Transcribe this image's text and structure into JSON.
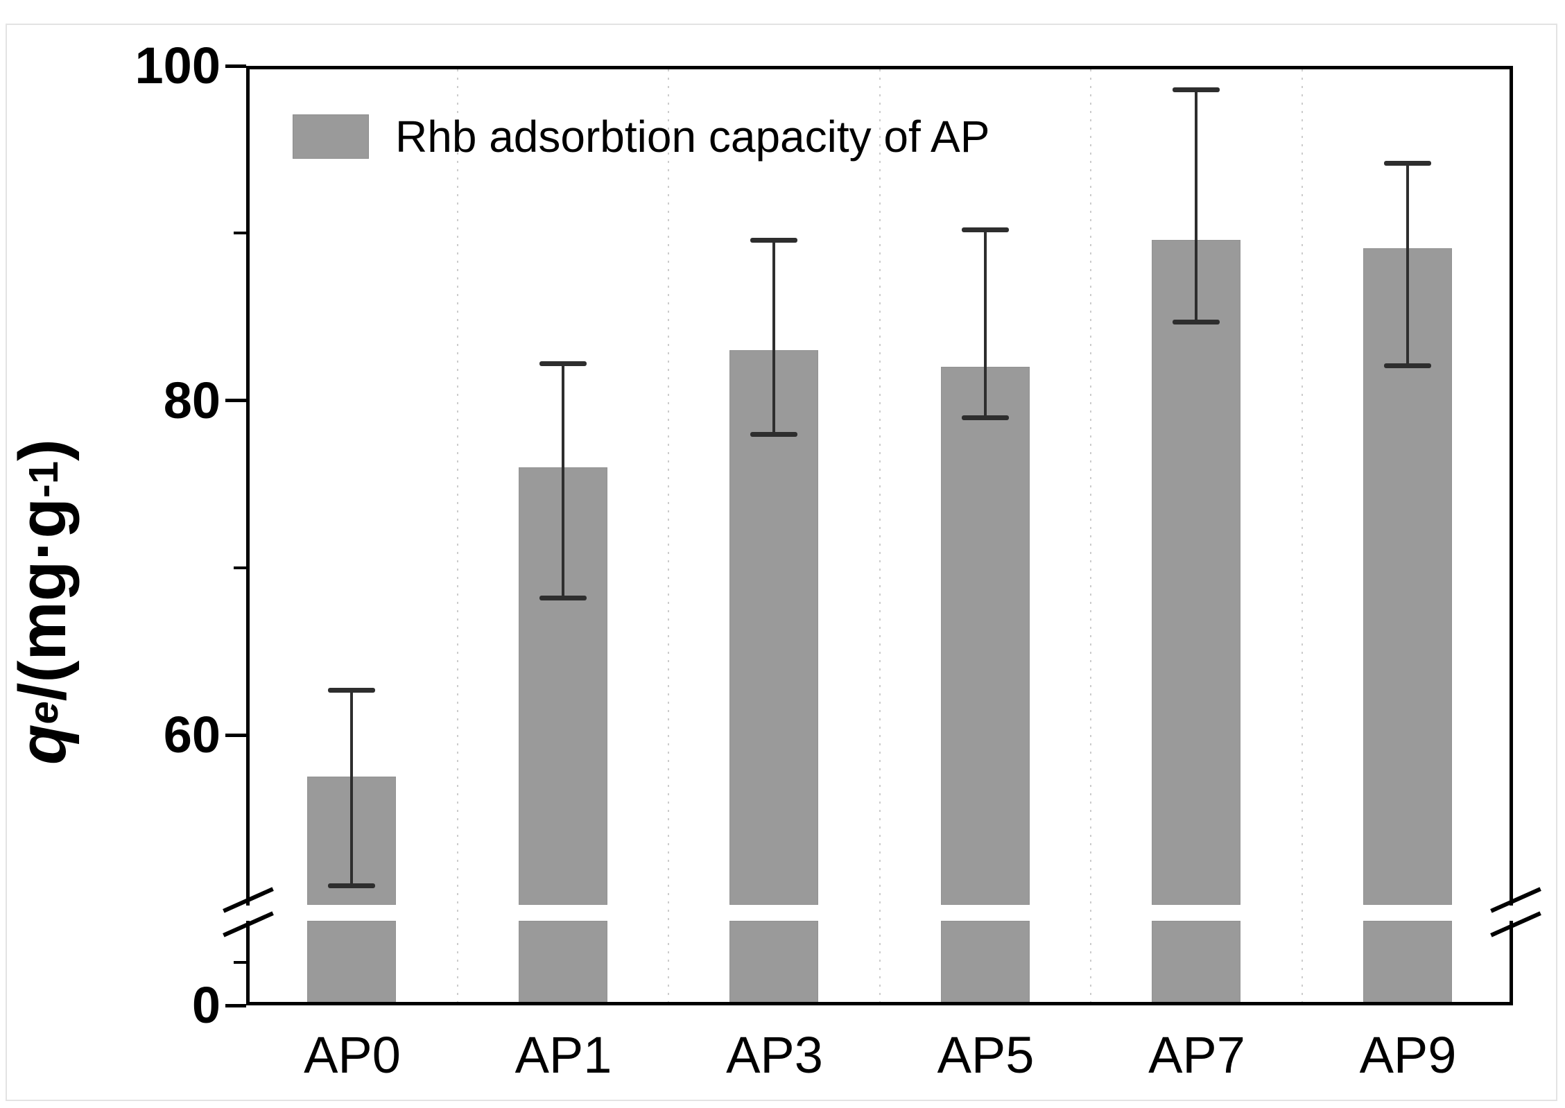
{
  "figure": {
    "legend": {
      "label": "Rhb adsorbtion capacity of AP"
    },
    "y_axis": {
      "title_q": "q",
      "title_sub": "e",
      "title_mid": "/(mg·g",
      "title_sup": "-1",
      "title_end": ")"
    }
  },
  "chart_data": {
    "type": "bar",
    "title": "",
    "xlabel": "",
    "ylabel": "qe/(mg·g-1)",
    "legend_entries": [
      "Rhb adsorbtion capacity of AP"
    ],
    "legend_position": "top-left-inside",
    "categories": [
      "AP0",
      "AP1",
      "AP3",
      "AP5",
      "AP7",
      "AP9"
    ],
    "series": [
      {
        "name": "Rhb adsorbtion capacity of AP",
        "values": [
          57.5,
          76.0,
          83.0,
          82.0,
          89.6,
          89.1
        ],
        "error_low": [
          51.0,
          68.2,
          78.0,
          79.0,
          84.7,
          82.1
        ],
        "error_high": [
          62.7,
          82.2,
          89.6,
          90.2,
          98.6,
          94.2
        ]
      }
    ],
    "ylim": [
      0,
      100
    ],
    "axis_break": {
      "enabled": true,
      "lower_segment_max": 5,
      "upper_segment_min": 50.4
    },
    "yticks_labeled": [
      {
        "value": 100,
        "label": "100"
      },
      {
        "value": 80,
        "label": "80"
      },
      {
        "value": 60,
        "label": "60"
      },
      {
        "value": 0,
        "label": "0"
      }
    ],
    "yticks_minor": [
      90,
      70
    ],
    "grid": "vertical-dotted-between-categories",
    "bar_color": "#9a9a9a",
    "error_color": "#2e2e2e",
    "frame_color": "#000000"
  }
}
